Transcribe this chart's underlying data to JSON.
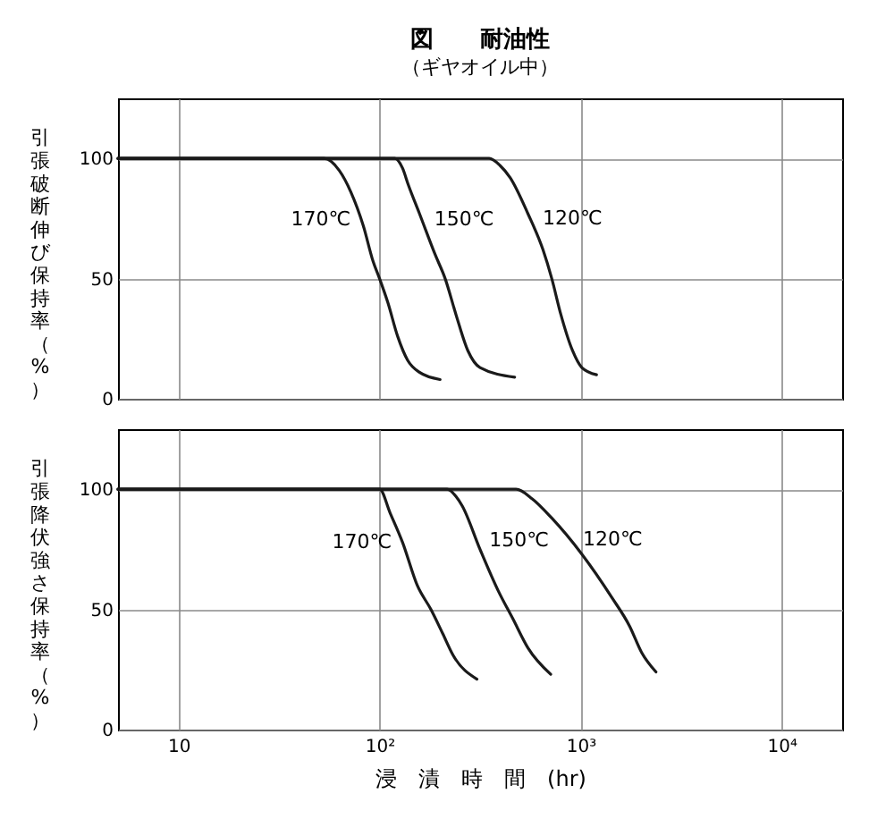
{
  "chart_data": [
    {
      "type": "line",
      "title": "図　　耐油性",
      "subtitle": "（ギヤオイル中）",
      "ylabel": "引張破断伸び保持率（%）",
      "xlim": [
        5,
        20000
      ],
      "xticks": [
        10,
        100,
        1000,
        10000
      ],
      "ylim": [
        0,
        125
      ],
      "yticks": [
        0,
        50,
        100
      ],
      "log": "x",
      "grid": true,
      "tick_labels": "y",
      "series": [
        {
          "name": "170℃",
          "color": "#1a1a1a",
          "x": [
            5,
            53,
            63,
            72,
            83,
            93,
            100,
            110,
            123,
            138,
            158,
            200
          ],
          "values": [
            100,
            100,
            95,
            86,
            72,
            57,
            50,
            40,
            26,
            16,
            11,
            8
          ]
        },
        {
          "name": "150℃",
          "color": "#1a1a1a",
          "x": [
            5,
            119,
            130,
            139,
            158,
            189,
            212,
            240,
            275,
            316,
            470
          ],
          "values": [
            100,
            100,
            96,
            89,
            77,
            60,
            50,
            35,
            20,
            13,
            9
          ]
        },
        {
          "name": "120℃",
          "color": "#1a1a1a",
          "x": [
            5,
            351,
            398,
            446,
            547,
            650,
            719,
            798,
            912,
            1014,
            1200
          ],
          "values": [
            100,
            100,
            97,
            92,
            77,
            62,
            50,
            35,
            20,
            13,
            10
          ]
        }
      ]
    },
    {
      "type": "line",
      "xlabel": "浸　漬　時　間　(hr)",
      "ylabel": "引張降伏強さ保持率（%）",
      "xlim": [
        5,
        20000
      ],
      "xticks": [
        10,
        {
          "value": 100,
          "label": "10²"
        },
        {
          "value": 1000,
          "label": "10³"
        },
        {
          "value": 10000,
          "label": "10⁴"
        }
      ],
      "ylim": [
        0,
        125
      ],
      "yticks": [
        0,
        50,
        100
      ],
      "log": "x",
      "grid": true,
      "series": [
        {
          "name": "170℃",
          "color": "#1a1a1a",
          "x": [
            5,
            100,
            113,
            130,
            154,
            180,
            206,
            232,
            305
          ],
          "values": [
            100,
            100,
            90,
            78,
            60,
            50,
            40,
            31,
            21
          ]
        },
        {
          "name": "150℃",
          "color": "#1a1a1a",
          "x": [
            5,
            217,
            240,
            258,
            316,
            388,
            461,
            547,
            710
          ],
          "values": [
            100,
            100,
            97,
            93,
            75,
            58,
            46,
            34,
            23
          ]
        },
        {
          "name": "120℃",
          "color": "#1a1a1a",
          "x": [
            5,
            478,
            575,
            719,
            1014,
            1429,
            1754,
            2014,
            2371
          ],
          "values": [
            100,
            100,
            96,
            88,
            73,
            55,
            43,
            32,
            24
          ]
        }
      ]
    }
  ]
}
